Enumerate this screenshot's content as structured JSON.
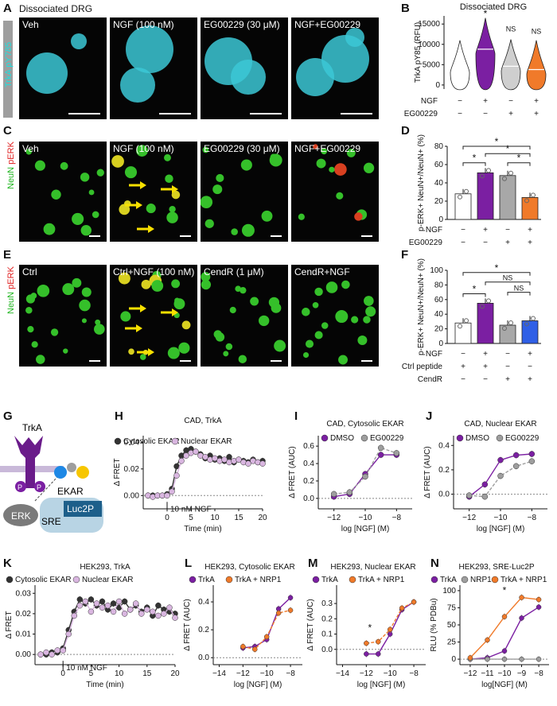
{
  "panels": {
    "A": "A",
    "B": "B",
    "C": "C",
    "D": "D",
    "E": "E",
    "F": "F",
    "G": "G",
    "H": "H",
    "I": "I",
    "J": "J",
    "K": "K",
    "L": "L",
    "M": "M",
    "N": "N"
  },
  "rowA": {
    "header": "Dissociated DRG",
    "side_label": "TrkA pY785",
    "images": [
      "Veh",
      "NGF (100 nM)",
      "EG00229 (30 μM)",
      "NGF+EG00229"
    ]
  },
  "rowC": {
    "side_label_neun": "NeuN",
    "side_label_perk": "pERK",
    "images": [
      "Veh",
      "NGF (100 nM)",
      "EG00229 (30 μM)",
      "NGF+EG00229"
    ]
  },
  "rowE": {
    "side_label_neun": "NeuN",
    "side_label_perk": "pERK",
    "images": [
      "Ctrl",
      "Ctrl+NGF (100 nM)",
      "CendR (1 μM)",
      "CendR+NGF"
    ]
  },
  "panelG": {
    "trka": "TrkA",
    "ekar": "EKAR",
    "erk": "ERK",
    "sre": "SRE",
    "luc": "Luc2P",
    "p": "P"
  },
  "chart_data": [
    {
      "panel": "B",
      "type": "violin",
      "title": "Dissociated DRG",
      "ylabel": "TrkA pY85 (RFU)",
      "yticks": [
        0,
        5000,
        10000,
        15000
      ],
      "ylim": [
        -1000,
        17000
      ],
      "groups": [
        {
          "ngf": "−",
          "eg": "−",
          "median": 4200,
          "max": 11000,
          "color": "#ffffff"
        },
        {
          "ngf": "+",
          "eg": "−",
          "median": 8800,
          "max": 16500,
          "color": "#7b1fa2"
        },
        {
          "ngf": "−",
          "eg": "+",
          "median": 4600,
          "max": 11200,
          "color": "#cfcfcf"
        },
        {
          "ngf": "+",
          "eg": "+",
          "median": 3800,
          "max": 11000,
          "color": "#f07a2a"
        }
      ],
      "annotations": [
        "*",
        "NS",
        "NS"
      ],
      "row_labels": [
        "NGF",
        "EG00229"
      ],
      "signs_ngf": [
        "−",
        "+",
        "−",
        "+"
      ],
      "signs_eg": [
        "−",
        "−",
        "+",
        "+"
      ]
    },
    {
      "panel": "D",
      "type": "bar",
      "ylabel": "p-ERK+ NeuN+/NeuN+ (%)",
      "ylim": [
        0,
        80
      ],
      "yticks": [
        0,
        20,
        40,
        60,
        80
      ],
      "values": [
        28,
        51,
        48,
        24
      ],
      "colors": [
        "#ffffff",
        "#7b1fa2",
        "#a8a8a8",
        "#f07a2a"
      ],
      "row_labels": [
        "NGF",
        "EG00229"
      ],
      "signs_ngf": [
        "−",
        "+",
        "−",
        "+"
      ],
      "signs_eg": [
        "−",
        "−",
        "+",
        "+"
      ],
      "annotations": [
        "*",
        "*",
        "*",
        "*"
      ]
    },
    {
      "panel": "F",
      "type": "bar",
      "ylabel": "p-ERK+ NeuN+/NeuN+ (%)",
      "ylim": [
        0,
        100
      ],
      "yticks": [
        0,
        20,
        40,
        60,
        80,
        100
      ],
      "values": [
        28,
        55,
        25,
        31
      ],
      "colors": [
        "#ffffff",
        "#7b1fa2",
        "#a8a8a8",
        "#2f5fe6"
      ],
      "row_labels": [
        "NGF",
        "Ctrl peptide",
        "CendR"
      ],
      "signs_ngf": [
        "−",
        "+",
        "−",
        "+"
      ],
      "signs_ctrl": [
        "+",
        "+",
        "−",
        "−"
      ],
      "signs_cendr": [
        "−",
        "−",
        "+",
        "+"
      ],
      "annotations": [
        "*",
        "NS",
        "NS",
        "*"
      ]
    },
    {
      "panel": "H",
      "type": "line",
      "title": "CAD, TrkA",
      "xlabel": "Time (min)",
      "ylabel": "Δ FRET",
      "xlim": [
        -5,
        20
      ],
      "ylim": [
        -0.01,
        0.045
      ],
      "xticks": [
        0,
        5,
        10,
        15,
        20
      ],
      "yticks": [
        0.0,
        0.02,
        0.04
      ],
      "annotation": "10 nM NGF",
      "series": [
        {
          "name": "Cytosolic EKAR",
          "color": "#333333",
          "x": [
            -4,
            -3,
            -2,
            -1,
            0,
            1,
            2,
            3,
            4,
            5,
            6,
            7,
            8,
            9,
            10,
            11,
            12,
            13,
            14,
            15,
            16,
            17,
            18,
            19,
            20
          ],
          "y": [
            0.0,
            0.0,
            0.0,
            0.0,
            0.001,
            0.005,
            0.022,
            0.03,
            0.034,
            0.035,
            0.033,
            0.031,
            0.028,
            0.03,
            0.027,
            0.028,
            0.026,
            0.029,
            0.025,
            0.027,
            0.026,
            0.025,
            0.027,
            0.025,
            0.026
          ]
        },
        {
          "name": "Nuclear EKAR",
          "color": "#d9b6e0",
          "x": [
            -4,
            -3,
            -2,
            -1,
            0,
            1,
            2,
            3,
            4,
            5,
            6,
            7,
            8,
            9,
            10,
            11,
            12,
            13,
            14,
            15,
            16,
            17,
            18,
            19,
            20
          ],
          "y": [
            0.0,
            -0.001,
            0.0,
            0.0,
            0.0,
            0.003,
            0.015,
            0.026,
            0.03,
            0.032,
            0.033,
            0.03,
            0.029,
            0.027,
            0.028,
            0.026,
            0.027,
            0.025,
            0.026,
            0.027,
            0.025,
            0.024,
            0.026,
            0.025,
            0.024
          ]
        }
      ]
    },
    {
      "panel": "I",
      "type": "line",
      "title": "CAD, Cytosolic EKAR",
      "xlabel": "log [NGF] (M)",
      "ylabel": "Δ FRET (AUC)",
      "xlim": [
        -13,
        -7
      ],
      "ylim": [
        -0.12,
        0.72
      ],
      "xticks": [
        -12,
        -10,
        -8
      ],
      "yticks": [
        0.0,
        0.2,
        0.4,
        0.6
      ],
      "series": [
        {
          "name": "DMSO",
          "color": "#7b1fa2",
          "x": [
            -12,
            -11,
            -10,
            -9,
            -8
          ],
          "y": [
            0.02,
            0.05,
            0.28,
            0.5,
            0.5
          ]
        },
        {
          "name": "EG00229",
          "color": "#9e9e9e",
          "x": [
            -12,
            -11,
            -10,
            -9,
            -8
          ],
          "y": [
            0.05,
            0.07,
            0.25,
            0.58,
            0.52
          ]
        }
      ]
    },
    {
      "panel": "J",
      "type": "line",
      "title": "CAD, Nuclear EKAR",
      "xlabel": "log [NGF] (M)",
      "ylabel": "Δ FRET (AUC)",
      "xlim": [
        -13,
        -7
      ],
      "ylim": [
        -0.12,
        0.48
      ],
      "xticks": [
        -12,
        -10,
        -8
      ],
      "yticks": [
        0.0,
        0.2,
        0.4
      ],
      "series": [
        {
          "name": "DMSO",
          "color": "#7b1fa2",
          "x": [
            -12,
            -11,
            -10,
            -9,
            -8
          ],
          "y": [
            -0.02,
            0.08,
            0.28,
            0.32,
            0.33
          ]
        },
        {
          "name": "EG00229",
          "color": "#9e9e9e",
          "x": [
            -12,
            -11,
            -10,
            -9,
            -8
          ],
          "y": [
            -0.01,
            -0.02,
            0.15,
            0.23,
            0.27
          ]
        }
      ]
    },
    {
      "panel": "K",
      "type": "line",
      "title": "HEK293, TrkA",
      "xlabel": "Time (min)",
      "ylabel": "Δ FRET",
      "xlim": [
        -5,
        20
      ],
      "ylim": [
        -0.005,
        0.034
      ],
      "xticks": [
        0,
        5,
        10,
        15,
        20
      ],
      "yticks": [
        0.0,
        0.01,
        0.02,
        0.03
      ],
      "annotation": "10 nM NGF",
      "series": [
        {
          "name": "Cytosolic EKAR",
          "color": "#333333",
          "x": [
            -4,
            -3,
            -2,
            -1,
            0,
            1,
            2,
            3,
            4,
            5,
            6,
            7,
            8,
            9,
            10,
            11,
            12,
            13,
            14,
            15,
            16,
            17,
            18,
            19,
            20
          ],
          "y": [
            0.0,
            0.0,
            0.001,
            0.001,
            0.003,
            0.012,
            0.021,
            0.027,
            0.025,
            0.027,
            0.024,
            0.026,
            0.022,
            0.025,
            0.023,
            0.026,
            0.022,
            0.024,
            0.021,
            0.023,
            0.019,
            0.024,
            0.022,
            0.021,
            0.02
          ]
        },
        {
          "name": "Nuclear EKAR",
          "color": "#d9b6e0",
          "x": [
            -4,
            -3,
            -2,
            -1,
            0,
            1,
            2,
            3,
            4,
            5,
            6,
            7,
            8,
            9,
            10,
            11,
            12,
            13,
            14,
            15,
            16,
            17,
            18,
            19,
            20
          ],
          "y": [
            0.0,
            0.001,
            0.0,
            0.002,
            0.002,
            0.01,
            0.019,
            0.024,
            0.026,
            0.021,
            0.025,
            0.023,
            0.024,
            0.021,
            0.026,
            0.02,
            0.022,
            0.025,
            0.02,
            0.022,
            0.021,
            0.019,
            0.02,
            0.023,
            0.018
          ]
        }
      ]
    },
    {
      "panel": "L",
      "type": "line",
      "title": "HEK293, Cytosolic EKAR",
      "xlabel": "log [NGF] (M)",
      "ylabel": "Δ FRET (AUC)",
      "xlim": [
        -14.5,
        -7
      ],
      "ylim": [
        -0.05,
        0.52
      ],
      "xticks": [
        -14,
        -12,
        -10,
        -8
      ],
      "yticks": [
        0.0,
        0.2,
        0.4
      ],
      "series": [
        {
          "name": "TrkA",
          "color": "#7b1fa2",
          "x": [
            -12,
            -11,
            -10,
            -9,
            -8
          ],
          "y": [
            0.07,
            0.08,
            0.13,
            0.35,
            0.43
          ]
        },
        {
          "name": "TrkA + NRP1",
          "color": "#f07a2a",
          "x": [
            -12,
            -11,
            -10,
            -9,
            -8
          ],
          "y": [
            0.08,
            0.06,
            0.15,
            0.32,
            0.34
          ]
        }
      ]
    },
    {
      "panel": "M",
      "type": "line",
      "title": "HEK293, Nuclear EKAR",
      "xlabel": "log [NGF] (M)",
      "ylabel": "Δ FRET (AUC)",
      "xlim": [
        -14.5,
        -7
      ],
      "ylim": [
        -0.1,
        0.42
      ],
      "xticks": [
        -14,
        -12,
        -10,
        -8
      ],
      "yticks": [
        0.0,
        0.1,
        0.2,
        0.3
      ],
      "annotation": "*",
      "series": [
        {
          "name": "TrkA",
          "color": "#7b1fa2",
          "x": [
            -12,
            -11,
            -10,
            -9,
            -8
          ],
          "y": [
            -0.03,
            -0.03,
            0.1,
            0.26,
            0.31
          ]
        },
        {
          "name": "TrkA + NRP1",
          "color": "#f07a2a",
          "x": [
            -12,
            -11,
            -10,
            -9,
            -8
          ],
          "y": [
            0.04,
            0.05,
            0.13,
            0.27,
            0.31
          ]
        }
      ]
    },
    {
      "panel": "N",
      "type": "line",
      "title": "HEK293, SRE-Luc2P",
      "xlabel": "log[NGF] (M)",
      "ylabel": "RLU (% PDBu)",
      "xlim": [
        -12.6,
        -7.4
      ],
      "ylim": [
        -8,
        108
      ],
      "xticks": [
        -12,
        -11,
        -10,
        -9,
        -8
      ],
      "yticks": [
        0,
        25,
        50,
        75,
        100
      ],
      "annotation": "*",
      "series": [
        {
          "name": "TrkA",
          "color": "#7b1fa2",
          "x": [
            -12,
            -11,
            -10,
            -9,
            -8
          ],
          "y": [
            0,
            2,
            12,
            60,
            76
          ]
        },
        {
          "name": "NRP1",
          "color": "#9e9e9e",
          "x": [
            -12,
            -11,
            -10,
            -9,
            -8
          ],
          "y": [
            0,
            0,
            0,
            0,
            0
          ]
        },
        {
          "name": "TrkA + NRP1",
          "color": "#f07a2a",
          "x": [
            -12,
            -11,
            -10,
            -9,
            -8
          ],
          "y": [
            2,
            28,
            62,
            90,
            87
          ]
        }
      ]
    }
  ]
}
